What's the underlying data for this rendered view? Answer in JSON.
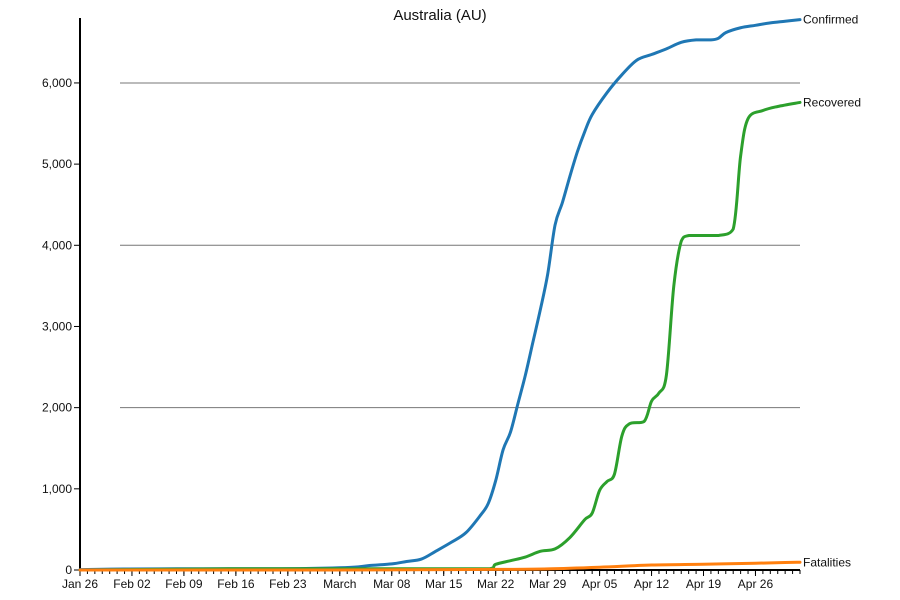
{
  "chart_data": {
    "type": "line",
    "title": "Australia (AU)",
    "xlabel": "",
    "ylabel": "",
    "x_start": "2020-01-26",
    "x_end": "2020-05-02",
    "x_tick_labels": [
      "Jan 26",
      "Feb 02",
      "Feb 09",
      "Feb 16",
      "Feb 23",
      "March",
      "Mar 08",
      "Mar 15",
      "Mar 22",
      "Mar 29",
      "Apr 05",
      "Apr 12",
      "Apr 19",
      "Apr 26"
    ],
    "x_tick_dates": [
      "2020-01-26",
      "2020-02-02",
      "2020-02-09",
      "2020-02-16",
      "2020-02-23",
      "2020-03-01",
      "2020-03-08",
      "2020-03-15",
      "2020-03-22",
      "2020-03-29",
      "2020-04-05",
      "2020-04-12",
      "2020-04-19",
      "2020-04-26"
    ],
    "y_ticks": [
      0,
      1000,
      2000,
      3000,
      4000,
      5000,
      6000
    ],
    "y_tick_labels": [
      "0",
      "1,000",
      "2,000",
      "3,000",
      "4,000",
      "5,000",
      "6,000"
    ],
    "ylim": [
      0,
      6800
    ],
    "grid": "horizontal at 2,000 / 4,000 / 6,000",
    "legend": "inline labels at line ends",
    "series": [
      {
        "name": "Confirmed",
        "color": "#1f77b4",
        "points": [
          [
            "2020-01-26",
            4
          ],
          [
            "2020-02-01",
            12
          ],
          [
            "2020-02-08",
            15
          ],
          [
            "2020-02-15",
            15
          ],
          [
            "2020-02-22",
            15
          ],
          [
            "2020-02-29",
            25
          ],
          [
            "2020-03-03",
            35
          ],
          [
            "2020-03-05",
            55
          ],
          [
            "2020-03-08",
            75
          ],
          [
            "2020-03-10",
            105
          ],
          [
            "2020-03-12",
            135
          ],
          [
            "2020-03-14",
            235
          ],
          [
            "2020-03-16",
            340
          ],
          [
            "2020-03-18",
            460
          ],
          [
            "2020-03-20",
            680
          ],
          [
            "2020-03-21",
            820
          ],
          [
            "2020-03-22",
            1100
          ],
          [
            "2020-03-23",
            1480
          ],
          [
            "2020-03-24",
            1700
          ],
          [
            "2020-03-25",
            2050
          ],
          [
            "2020-03-26",
            2400
          ],
          [
            "2020-03-27",
            2800
          ],
          [
            "2020-03-28",
            3200
          ],
          [
            "2020-03-29",
            3640
          ],
          [
            "2020-03-30",
            4250
          ],
          [
            "2020-03-31",
            4530
          ],
          [
            "2020-04-01",
            4850
          ],
          [
            "2020-04-02",
            5150
          ],
          [
            "2020-04-03",
            5400
          ],
          [
            "2020-04-04",
            5610
          ],
          [
            "2020-04-06",
            5880
          ],
          [
            "2020-04-08",
            6100
          ],
          [
            "2020-04-10",
            6280
          ],
          [
            "2020-04-12",
            6350
          ],
          [
            "2020-04-14",
            6420
          ],
          [
            "2020-04-16",
            6500
          ],
          [
            "2020-04-18",
            6530
          ],
          [
            "2020-04-20",
            6530
          ],
          [
            "2020-04-21",
            6550
          ],
          [
            "2020-04-22",
            6620
          ],
          [
            "2020-04-24",
            6680
          ],
          [
            "2020-04-26",
            6710
          ],
          [
            "2020-04-28",
            6740
          ],
          [
            "2020-04-30",
            6760
          ],
          [
            "2020-05-02",
            6780
          ]
        ]
      },
      {
        "name": "Recovered",
        "color": "#2ca02c",
        "points": [
          [
            "2020-01-26",
            0
          ],
          [
            "2020-02-15",
            15
          ],
          [
            "2020-03-15",
            15
          ],
          [
            "2020-03-21",
            15
          ],
          [
            "2020-03-22",
            70
          ],
          [
            "2020-03-24",
            115
          ],
          [
            "2020-03-26",
            160
          ],
          [
            "2020-03-28",
            230
          ],
          [
            "2020-03-30",
            260
          ],
          [
            "2020-04-01",
            400
          ],
          [
            "2020-04-03",
            620
          ],
          [
            "2020-04-04",
            700
          ],
          [
            "2020-04-05",
            980
          ],
          [
            "2020-04-06",
            1090
          ],
          [
            "2020-04-07",
            1180
          ],
          [
            "2020-04-08",
            1650
          ],
          [
            "2020-04-09",
            1800
          ],
          [
            "2020-04-11",
            1830
          ],
          [
            "2020-04-12",
            2080
          ],
          [
            "2020-04-13",
            2180
          ],
          [
            "2020-04-14",
            2400
          ],
          [
            "2020-04-15",
            3500
          ],
          [
            "2020-04-16",
            4050
          ],
          [
            "2020-04-17",
            4120
          ],
          [
            "2020-04-19",
            4120
          ],
          [
            "2020-04-21",
            4120
          ],
          [
            "2020-04-23",
            4200
          ],
          [
            "2020-04-24",
            5100
          ],
          [
            "2020-04-25",
            5560
          ],
          [
            "2020-04-27",
            5660
          ],
          [
            "2020-04-29",
            5710
          ],
          [
            "2020-05-02",
            5760
          ]
        ]
      },
      {
        "name": "Fatalities",
        "color": "#ff7f0e",
        "points": [
          [
            "2020-01-26",
            0
          ],
          [
            "2020-02-29",
            0
          ],
          [
            "2020-03-10",
            3
          ],
          [
            "2020-03-22",
            7
          ],
          [
            "2020-03-29",
            14
          ],
          [
            "2020-04-05",
            34
          ],
          [
            "2020-04-12",
            61
          ],
          [
            "2020-04-19",
            71
          ],
          [
            "2020-04-26",
            83
          ],
          [
            "2020-04-30",
            93
          ],
          [
            "2020-05-02",
            95
          ]
        ]
      }
    ]
  }
}
